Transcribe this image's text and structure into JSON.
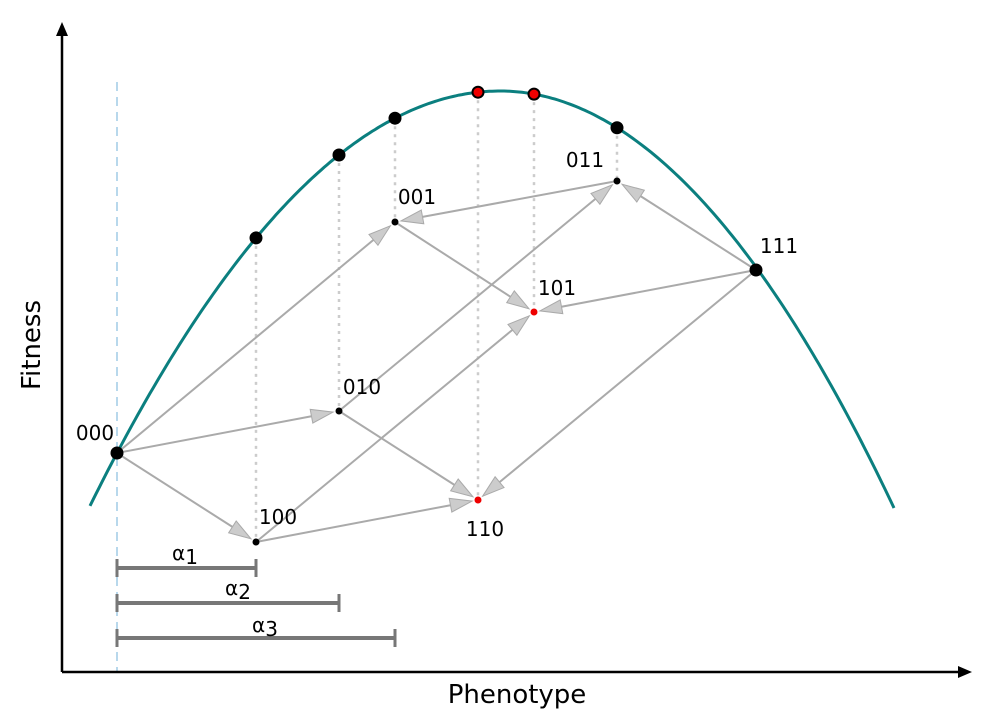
{
  "axes": {
    "x_label": "Phenotype",
    "y_label": "Fitness"
  },
  "nodes": [
    {
      "label": "000"
    },
    {
      "label": "100"
    },
    {
      "label": "010"
    },
    {
      "label": "001"
    },
    {
      "label": "110"
    },
    {
      "label": "101"
    },
    {
      "label": "011"
    },
    {
      "label": "111"
    }
  ],
  "effects": [
    {
      "symbol": "α",
      "subscript": "1"
    },
    {
      "symbol": "α",
      "subscript": "2"
    },
    {
      "symbol": "α",
      "subscript": "3"
    }
  ]
}
